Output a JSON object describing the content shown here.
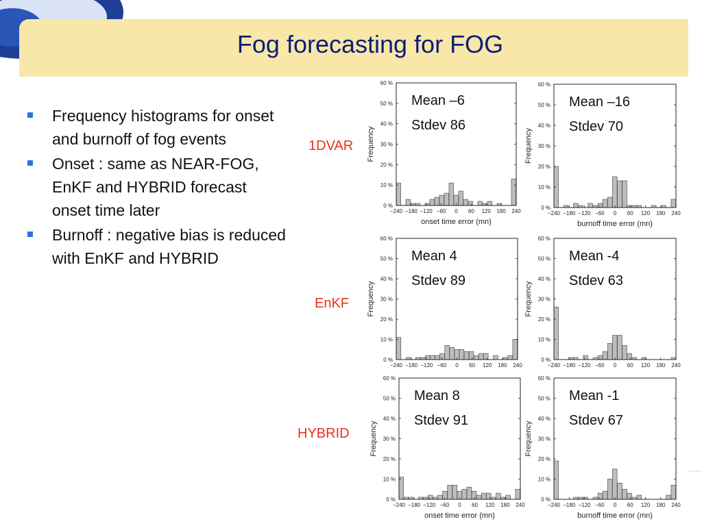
{
  "slide": {
    "title": "Fog forecasting for FOG",
    "bullets": [
      "Frequency histograms for onset and burnoff of fog events",
      "Onset : same as NEAR-FOG, EnKF and HYBRID forecast onset time later",
      "Burnoff : negative bias is reduced with EnKF and HYBRID"
    ],
    "row_labels": [
      "1DVAR",
      "EnKF",
      "HYBRID"
    ],
    "colors": {
      "title": "#0b1e78",
      "row_label": "#e8321d",
      "bullet_marker": "#2f6fe0",
      "bar_fill": "#bdbdbd"
    }
  },
  "chart_data": [
    {
      "type": "bar",
      "row": "1DVAR",
      "metric": "onset",
      "mean_label": "Mean –6",
      "stdev_label": "Stdev 86",
      "xlabel": "onset time error (mn)",
      "ylabel": "Frequency",
      "ylim": [
        0,
        60
      ],
      "x_ticks": [
        "−240",
        "−180",
        "−120",
        "−60",
        "0",
        "60",
        "120",
        "180",
        "240"
      ],
      "y_ticks": [
        "0 %",
        "10 %",
        "20 %",
        "30 %",
        "40 %",
        "50 %",
        "60 %"
      ],
      "values": [
        11,
        0,
        3,
        1,
        1,
        0,
        1,
        3,
        4,
        5,
        6,
        11,
        5,
        7,
        3,
        2,
        0,
        2,
        1,
        2,
        0,
        1,
        0,
        0,
        13
      ]
    },
    {
      "type": "bar",
      "row": "1DVAR",
      "metric": "burnoff",
      "mean_label": "Mean –16",
      "stdev_label": "Stdev 70",
      "xlabel": "burnoff time error (mn)",
      "ylabel": "Frequency",
      "ylim": [
        0,
        60
      ],
      "x_ticks": [
        "−240",
        "−180",
        "−120",
        "−60",
        "0",
        "60",
        "120",
        "180",
        "240"
      ],
      "y_ticks": [
        "0 %",
        "10 %",
        "20 %",
        "30 %",
        "40 %",
        "50 %",
        "60 %"
      ],
      "values": [
        20,
        0,
        1,
        0,
        2,
        1,
        0,
        2,
        1,
        2,
        4,
        5,
        15,
        13,
        13,
        1,
        1,
        1,
        0,
        0,
        1,
        0,
        1,
        0,
        4
      ]
    },
    {
      "type": "bar",
      "row": "EnKF",
      "metric": "onset",
      "mean_label": "Mean 4",
      "stdev_label": "Stdev 89",
      "xlabel": "",
      "ylabel": "Frequency",
      "ylim": [
        0,
        60
      ],
      "x_ticks": [
        "−240",
        "−180",
        "−120",
        "−60",
        "0",
        "60",
        "120",
        "180",
        "240"
      ],
      "y_ticks": [
        "0 %",
        "10 %",
        "20 %",
        "30 %",
        "40 %",
        "50 %",
        "60 %"
      ],
      "values": [
        11,
        0,
        1,
        0,
        1,
        1,
        2,
        2,
        2,
        3,
        7,
        6,
        5,
        5,
        4,
        4,
        2,
        3,
        3,
        0,
        2,
        0,
        1,
        2,
        10
      ]
    },
    {
      "type": "bar",
      "row": "EnKF",
      "metric": "burnoff",
      "mean_label": "Mean -4",
      "stdev_label": "Stdev 63",
      "xlabel": "",
      "ylabel": "Frequency",
      "ylim": [
        0,
        60
      ],
      "x_ticks": [
        "−240",
        "−180",
        "−120",
        "−60",
        "0",
        "60",
        "120",
        "180",
        "240"
      ],
      "y_ticks": [
        "0 %",
        "10 %",
        "20 %",
        "30 %",
        "40 %",
        "50 %",
        "60 %"
      ],
      "values": [
        26,
        0,
        0,
        1,
        1,
        0,
        2,
        0,
        1,
        2,
        4,
        8,
        12,
        12,
        7,
        3,
        1,
        0,
        1,
        0,
        0,
        0,
        0,
        0,
        1
      ]
    },
    {
      "type": "bar",
      "row": "HYBRID",
      "metric": "onset",
      "mean_label": "Mean 8",
      "stdev_label": "Stdev 91",
      "xlabel": "onset time error (mn)",
      "ylabel": "Frequency",
      "ylim": [
        0,
        60
      ],
      "x_ticks": [
        "−240",
        "−180",
        "−120",
        "−60",
        "0",
        "60",
        "120",
        "180",
        "240"
      ],
      "y_ticks": [
        "0 %",
        "10 %",
        "20 %",
        "30 %",
        "40 %",
        "50 %",
        "60 %"
      ],
      "values": [
        11,
        1,
        1,
        0,
        1,
        1,
        2,
        1,
        2,
        4,
        7,
        7,
        4,
        5,
        6,
        4,
        2,
        3,
        3,
        1,
        3,
        1,
        2,
        0,
        5
      ]
    },
    {
      "type": "bar",
      "row": "HYBRID",
      "metric": "burnoff",
      "mean_label": "Mean -1",
      "stdev_label": "Stdev 67",
      "xlabel": "burnoff time error (mn)",
      "ylabel": "Frequency",
      "ylim": [
        0,
        60
      ],
      "x_ticks": [
        "−240",
        "−180",
        "−120",
        "−60",
        "0",
        "60",
        "120",
        "180",
        "240"
      ],
      "y_ticks": [
        "0 %",
        "10 %",
        "20 %",
        "30 %",
        "40 %",
        "50 %",
        "60 %"
      ],
      "values": [
        19,
        0,
        0,
        0,
        1,
        1,
        1,
        0,
        1,
        3,
        4,
        10,
        15,
        8,
        5,
        3,
        1,
        2,
        0,
        0,
        0,
        0,
        0,
        2,
        7
      ]
    }
  ]
}
